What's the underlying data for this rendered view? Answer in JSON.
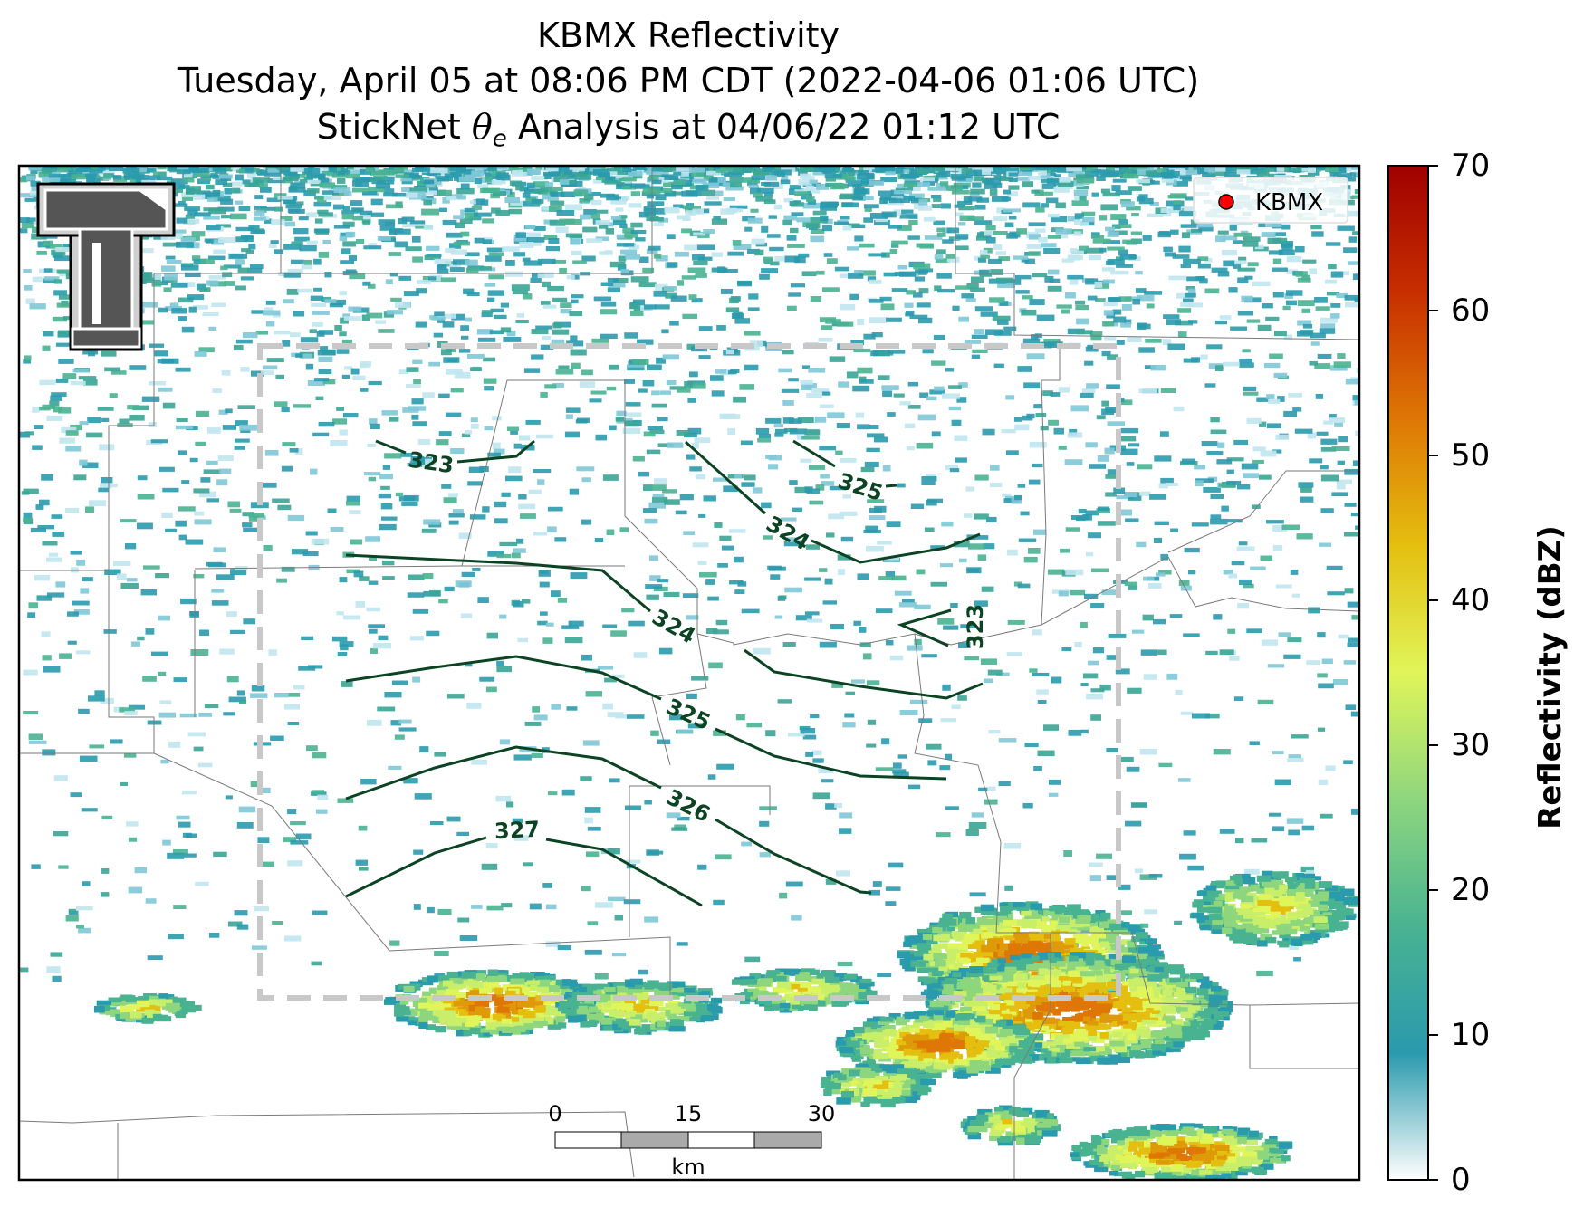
{
  "title": {
    "line1": "KBMX Reflectivity",
    "line2": "Tuesday, April 05 at 08:06 PM CDT (2022-04-06 01:06 UTC)",
    "line3_pre": "StickNet ",
    "line3_sym": "θ",
    "line3_sub": "e",
    "line3_post": " Analysis at 04/06/22 01:12 UTC"
  },
  "legend": {
    "label": "KBMX",
    "marker_color": "#ff0000"
  },
  "colorbar": {
    "label": "Reflectivity (dBZ)",
    "ticks": [
      "0",
      "10",
      "20",
      "30",
      "40",
      "50",
      "60",
      "70"
    ],
    "range": [
      0,
      70
    ],
    "colors": [
      "#ffffff",
      "#2a9aad",
      "#49b391",
      "#8ed67e",
      "#e0f55a",
      "#e4bf10",
      "#de7705",
      "#c72f00",
      "#a00000"
    ]
  },
  "contours": {
    "color": "#0b4323",
    "labels": [
      "323",
      "325",
      "324",
      "324",
      "323",
      "325",
      "326",
      "327"
    ]
  },
  "scalebar": {
    "ticks": [
      "0",
      "15",
      "30"
    ],
    "unit": "km"
  },
  "logo": {
    "name": "Texas Tech Double T",
    "letter": "T"
  }
}
